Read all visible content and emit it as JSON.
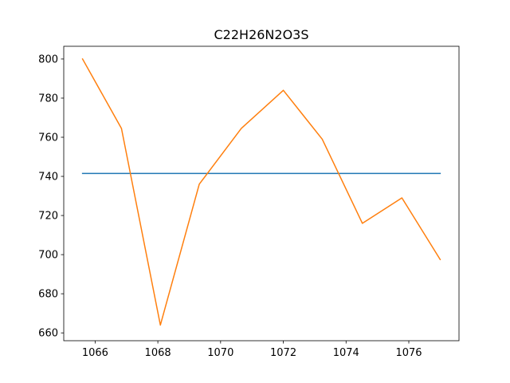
{
  "chart_data": {
    "type": "line",
    "title": "C22H26N2O3S",
    "xlabel": "",
    "ylabel": "",
    "xlim": [
      1065.0,
      1077.6
    ],
    "ylim": [
      656.0,
      806.5
    ],
    "grid": false,
    "x_ticks": [
      1066,
      1068,
      1070,
      1072,
      1074,
      1076
    ],
    "x_tick_labels": [
      "1066",
      "1068",
      "1070",
      "1072",
      "1074",
      "1076"
    ],
    "y_ticks": [
      660,
      680,
      700,
      720,
      740,
      760,
      780,
      800
    ],
    "y_tick_labels": [
      "660",
      "680",
      "700",
      "720",
      "740",
      "760",
      "780",
      "800"
    ],
    "series": [
      {
        "color": "#1f77b4",
        "x": [
          1065.6,
          1077.0
        ],
        "y": [
          741.5,
          741.5
        ]
      },
      {
        "color": "#ff7f0e",
        "x": [
          1065.6,
          1066.84,
          1068.08,
          1069.32,
          1070.66,
          1072.0,
          1073.24,
          1074.52,
          1075.78,
          1077.0
        ],
        "y": [
          800.0,
          764.5,
          664.0,
          736.0,
          764.5,
          784.0,
          759.0,
          716.0,
          729.0,
          697.5
        ]
      }
    ]
  }
}
